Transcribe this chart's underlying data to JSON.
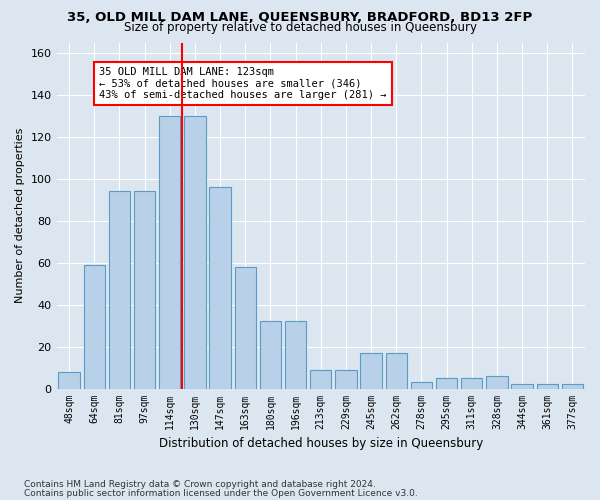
{
  "title": "35, OLD MILL DAM LANE, QUEENSBURY, BRADFORD, BD13 2FP",
  "subtitle": "Size of property relative to detached houses in Queensbury",
  "xlabel": "Distribution of detached houses by size in Queensbury",
  "ylabel": "Number of detached properties",
  "bar_color": "#b8d0e8",
  "bar_edge_color": "#5a9cc5",
  "background_color": "#dce6f0",
  "grid_color": "#ffffff",
  "categories": [
    "48sqm",
    "64sqm",
    "81sqm",
    "97sqm",
    "114sqm",
    "130sqm",
    "147sqm",
    "163sqm",
    "180sqm",
    "196sqm",
    "213sqm",
    "229sqm",
    "245sqm",
    "262sqm",
    "278sqm",
    "295sqm",
    "311sqm",
    "328sqm",
    "344sqm",
    "361sqm",
    "377sqm"
  ],
  "values": [
    8,
    59,
    94,
    94,
    130,
    130,
    96,
    58,
    32,
    32,
    9,
    9,
    17,
    17,
    3,
    5,
    5,
    6,
    2,
    2,
    2
  ],
  "red_line_x": 4.5,
  "annotation_text_line1": "35 OLD MILL DAM LANE: 123sqm",
  "annotation_text_line2": "← 53% of detached houses are smaller (346)",
  "annotation_text_line3": "43% of semi-detached houses are larger (281) →",
  "ylim": [
    0,
    165
  ],
  "yticks": [
    0,
    20,
    40,
    60,
    80,
    100,
    120,
    140,
    160
  ],
  "footnote1": "Contains HM Land Registry data © Crown copyright and database right 2024.",
  "footnote2": "Contains public sector information licensed under the Open Government Licence v3.0."
}
